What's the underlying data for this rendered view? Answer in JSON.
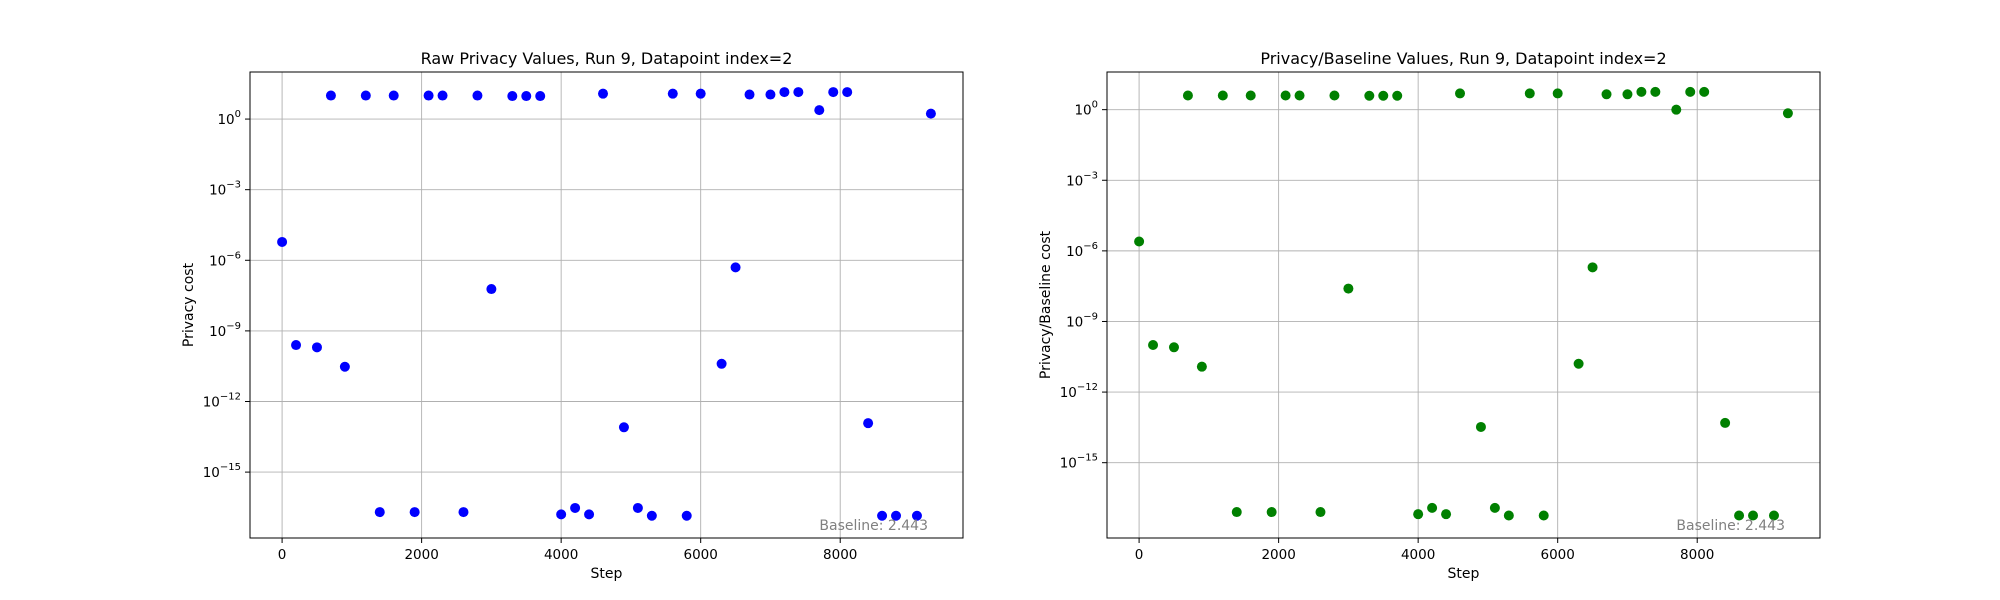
{
  "chart_data": [
    {
      "type": "scatter",
      "title": "Raw Privacy Values, Run 9, Datapoint index=2",
      "xlabel": "Step",
      "ylabel": "Privacy cost",
      "yscale": "log",
      "grid": true,
      "marker_color": "#0000ff",
      "annotation": "Baseline: 2.443",
      "xlim": [
        -460,
        9760
      ],
      "xticks": [
        0,
        2000,
        4000,
        6000,
        8000
      ],
      "ylim_exp": [
        -17.8,
        2.0
      ],
      "yticks_exp": [
        0,
        -3,
        -6,
        -9,
        -12,
        -15
      ],
      "x": [
        0,
        200,
        500,
        700,
        900,
        1200,
        1400,
        1600,
        1900,
        2100,
        2300,
        2600,
        2800,
        3000,
        3300,
        3500,
        3700,
        4000,
        4200,
        4400,
        4600,
        4900,
        5100,
        5300,
        5600,
        5800,
        6000,
        6300,
        6500,
        6700,
        7000,
        7200,
        7400,
        7700,
        7900,
        8100,
        8400,
        8600,
        8800,
        9100,
        9300
      ],
      "y": [
        6e-06,
        2.5e-10,
        2e-10,
        10,
        3e-11,
        10,
        2e-17,
        10,
        2e-17,
        10,
        10,
        2e-17,
        10,
        6e-08,
        9.5,
        9.5,
        9.5,
        1.6e-17,
        3e-17,
        1.6e-17,
        12,
        8e-14,
        3e-17,
        1.4e-17,
        12,
        1.4e-17,
        12,
        4e-11,
        5e-07,
        11,
        11,
        14,
        14,
        2.4,
        14,
        14,
        1.2e-13,
        1.4e-17,
        1.4e-17,
        1.4e-17,
        1.7
      ]
    },
    {
      "type": "scatter",
      "title": "Privacy/Baseline Values, Run 9, Datapoint index=2",
      "xlabel": "Step",
      "ylabel": "Privacy/Baseline cost",
      "yscale": "log",
      "grid": true,
      "marker_color": "#008000",
      "annotation": "Baseline: 2.443",
      "xlim": [
        -460,
        9760
      ],
      "xticks": [
        0,
        2000,
        4000,
        6000,
        8000
      ],
      "ylim_exp": [
        -18.2,
        1.6
      ],
      "yticks_exp": [
        0,
        -3,
        -6,
        -9,
        -12,
        -15
      ],
      "x": [
        0,
        200,
        500,
        700,
        900,
        1200,
        1400,
        1600,
        1900,
        2100,
        2300,
        2600,
        2800,
        3000,
        3300,
        3500,
        3700,
        4000,
        4200,
        4400,
        4600,
        4900,
        5100,
        5300,
        5600,
        5800,
        6000,
        6300,
        6500,
        6700,
        7000,
        7200,
        7400,
        7700,
        7900,
        8100,
        8400,
        8600,
        8800,
        9100,
        9300
      ],
      "y": [
        2.5e-06,
        1e-10,
        8e-11,
        4,
        1.2e-11,
        4,
        8e-18,
        4,
        8e-18,
        4,
        4,
        8e-18,
        4,
        2.5e-08,
        3.9,
        3.9,
        3.9,
        6.5e-18,
        1.2e-17,
        6.5e-18,
        4.9,
        3.3e-14,
        1.2e-17,
        5.7e-18,
        4.9,
        5.7e-18,
        4.9,
        1.6e-11,
        2e-07,
        4.5,
        4.5,
        5.7,
        5.7,
        1,
        5.7,
        5.7,
        4.9e-14,
        5.7e-18,
        5.7e-18,
        5.7e-18,
        0.7
      ]
    }
  ]
}
